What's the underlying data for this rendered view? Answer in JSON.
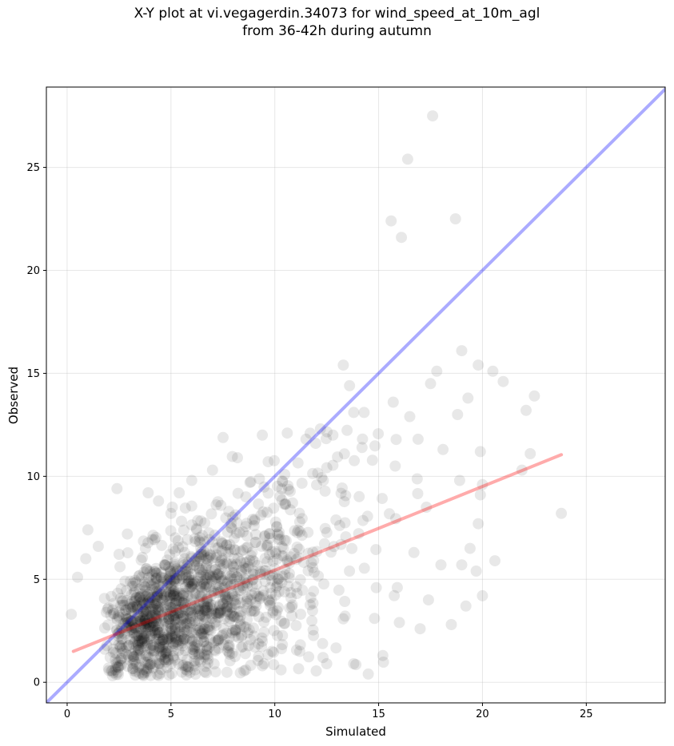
{
  "chart_data": {
    "type": "scatter",
    "title_line1": "X-Y plot at vi.vegagerdin.34073 for wind_speed_at_10m_agl",
    "title_line2": "from 36-42h during autumn",
    "xlabel": "Simulated",
    "ylabel": "Observed",
    "xlim": [
      -1,
      28.8
    ],
    "ylim": [
      -1,
      28.9
    ],
    "xticks": [
      0,
      5,
      10,
      15,
      20,
      25
    ],
    "yticks": [
      0,
      5,
      10,
      15,
      20,
      25
    ],
    "grid": true,
    "point_color": "#000000",
    "point_opacity": 0.09,
    "reference_line": {
      "from": [
        -1,
        -1
      ],
      "to": [
        28.8,
        28.8
      ],
      "color": "#0000ff",
      "opacity": 0.33
    },
    "fit_line": {
      "from": [
        0.3,
        1.5
      ],
      "to": [
        23.8,
        11.05
      ],
      "color": "#ff0000",
      "opacity": 0.33
    },
    "points": [
      [
        17.6,
        27.5
      ],
      [
        16.4,
        25.4
      ],
      [
        15.6,
        22.4
      ],
      [
        18.7,
        22.5
      ],
      [
        16.1,
        21.6
      ],
      [
        19.0,
        16.1
      ],
      [
        19.8,
        15.4
      ],
      [
        20.5,
        15.1
      ],
      [
        21.0,
        14.6
      ],
      [
        13.3,
        15.4
      ],
      [
        13.6,
        14.4
      ],
      [
        17.8,
        15.1
      ],
      [
        17.5,
        14.5
      ],
      [
        22.5,
        13.9
      ],
      [
        22.1,
        13.2
      ],
      [
        19.3,
        13.8
      ],
      [
        18.8,
        13.0
      ],
      [
        15.7,
        13.6
      ],
      [
        16.5,
        12.9
      ],
      [
        14.3,
        13.1
      ],
      [
        13.8,
        13.1
      ],
      [
        20.6,
        5.9
      ],
      [
        20.0,
        4.2
      ],
      [
        23.8,
        8.2
      ],
      [
        22.3,
        11.1
      ],
      [
        19.9,
        11.2
      ],
      [
        20.0,
        9.6
      ],
      [
        19.9,
        9.1
      ],
      [
        19.8,
        7.7
      ],
      [
        19.7,
        5.4
      ],
      [
        19.4,
        6.5
      ],
      [
        19.0,
        5.7
      ],
      [
        19.2,
        3.7
      ],
      [
        18.5,
        2.8
      ],
      [
        18.0,
        5.7
      ],
      [
        17.0,
        2.6
      ],
      [
        16.0,
        2.9
      ],
      [
        15.2,
        1.3
      ],
      [
        14.5,
        0.4
      ],
      [
        13.8,
        0.9
      ],
      [
        12.5,
        0.9
      ],
      [
        0.2,
        3.3
      ],
      [
        0.5,
        5.1
      ],
      [
        1.0,
        7.4
      ],
      [
        1.5,
        6.6
      ],
      [
        2.4,
        9.4
      ],
      [
        3.9,
        9.2
      ],
      [
        4.4,
        8.8
      ],
      [
        0.9,
        6.0
      ],
      [
        2.9,
        7.2
      ],
      [
        5.0,
        8.2
      ],
      [
        5.4,
        9.2
      ],
      [
        6.0,
        9.8
      ],
      [
        7.0,
        10.3
      ],
      [
        8.2,
        10.9
      ],
      [
        9.4,
        12.0
      ],
      [
        10.6,
        12.1
      ],
      [
        11.5,
        11.8
      ],
      [
        12.2,
        12.3
      ],
      [
        12.8,
        12.0
      ],
      [
        14.2,
        11.4
      ],
      [
        15.8,
        10.5
      ],
      [
        16.9,
        11.8
      ],
      [
        18.1,
        11.3
      ],
      [
        17.3,
        8.5
      ],
      [
        18.9,
        9.8
      ],
      [
        21.9,
        10.3
      ],
      [
        16.7,
        6.3
      ],
      [
        17.4,
        4.0
      ],
      [
        15.9,
        4.6
      ],
      [
        14.8,
        3.1
      ],
      [
        11.2,
        1.5
      ],
      [
        10.3,
        0.6
      ],
      [
        9.4,
        0.8
      ],
      [
        8.6,
        0.6
      ]
    ]
  }
}
